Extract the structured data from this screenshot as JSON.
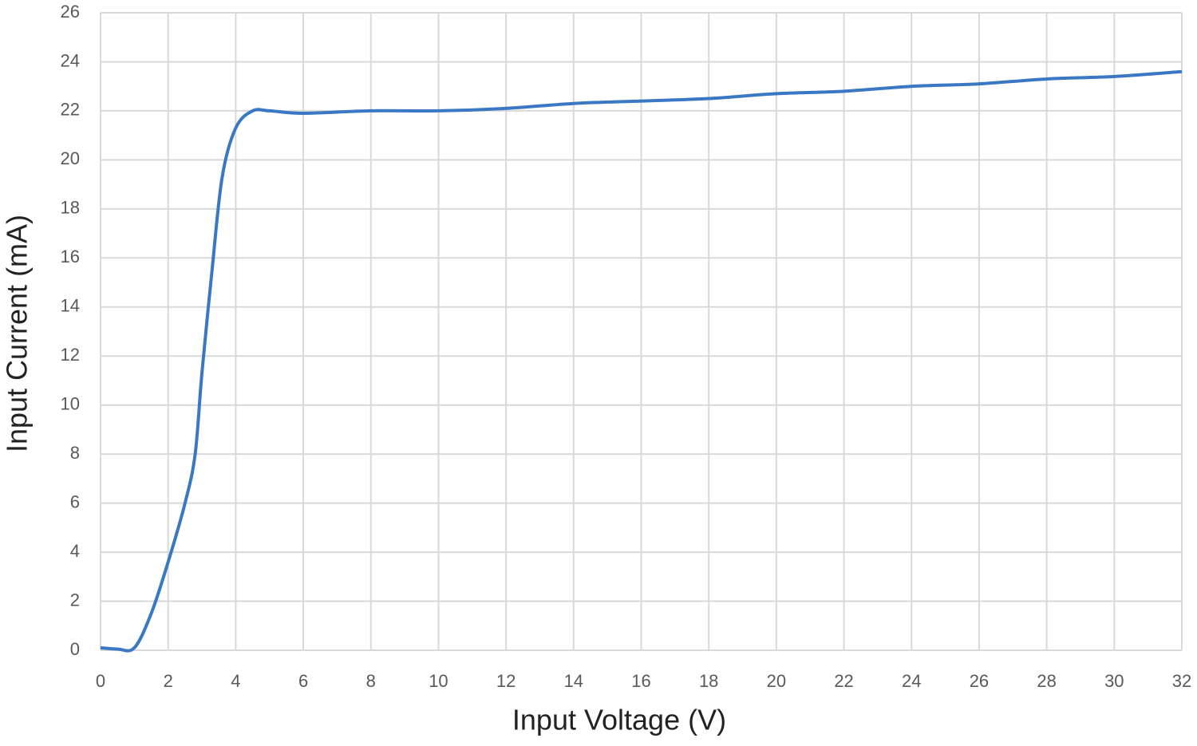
{
  "chart_data": {
    "type": "line",
    "x_label": "Input Voltage (V)",
    "y_label": "Input Current (mA)",
    "series": [
      {
        "name": "Input Current",
        "color": "#3b78c4",
        "x": [
          0,
          0.5,
          1,
          1.5,
          2,
          2.5,
          2.8,
          3,
          3.3,
          3.6,
          4,
          4.5,
          5,
          6,
          8,
          10,
          12,
          14,
          16,
          18,
          20,
          22,
          24,
          26,
          28,
          30,
          32
        ],
        "values": [
          0.1,
          0.05,
          0.1,
          1.5,
          3.6,
          6,
          8,
          11.3,
          15.5,
          19.3,
          21.3,
          22,
          22,
          21.9,
          22,
          22,
          22.1,
          22.3,
          22.4,
          22.5,
          22.7,
          22.8,
          23,
          23.1,
          23.3,
          23.4,
          23.6
        ]
      }
    ],
    "xlim": [
      0,
      32
    ],
    "xticks": [
      0,
      2,
      4,
      6,
      8,
      10,
      12,
      14,
      16,
      18,
      20,
      22,
      24,
      26,
      28,
      30,
      32
    ],
    "ylim": [
      0,
      26
    ],
    "yticks": [
      0,
      2,
      4,
      6,
      8,
      10,
      12,
      14,
      16,
      18,
      20,
      22,
      24,
      26
    ],
    "grid": true
  }
}
